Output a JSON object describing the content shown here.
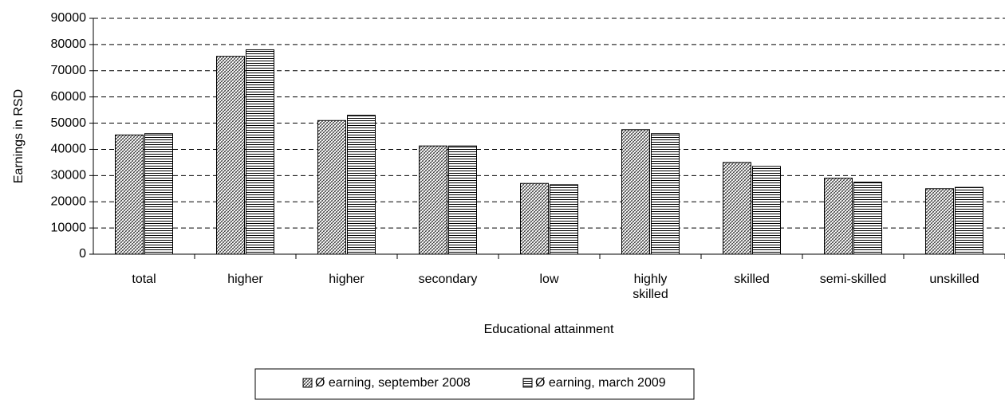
{
  "chart_data": {
    "type": "bar",
    "x_label": "Educational attainment",
    "y_label": "Earnings in RSD",
    "categories": [
      "total",
      "higher",
      "higher",
      "secondary",
      "low",
      "highly\nskilled",
      "skilled",
      "semi-skilled",
      "unskilled"
    ],
    "series": [
      {
        "name": "Ø earning, september 2008",
        "color": "#000000",
        "values": [
          45500,
          75500,
          51000,
          41300,
          27000,
          47500,
          35000,
          29000,
          25000
        ]
      },
      {
        "name": "Ø earning, march 2009",
        "color": "#000000",
        "values": [
          46000,
          78000,
          53000,
          41300,
          26500,
          46000,
          33500,
          27500,
          25500
        ]
      }
    ],
    "ylim": [
      0,
      90000
    ],
    "yticks": [
      0,
      10000,
      20000,
      30000,
      40000,
      50000,
      60000,
      70000,
      80000,
      90000
    ],
    "grid": true
  }
}
